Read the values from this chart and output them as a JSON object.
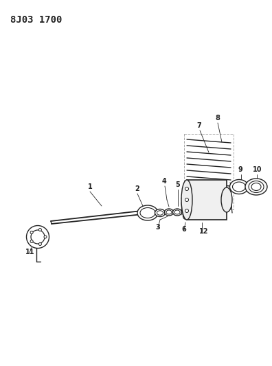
{
  "title": "8J03 1700",
  "bg_color": "#ffffff",
  "line_color": "#222222",
  "title_fontsize": 10,
  "fig_width": 3.96,
  "fig_height": 5.33,
  "dpi": 100
}
